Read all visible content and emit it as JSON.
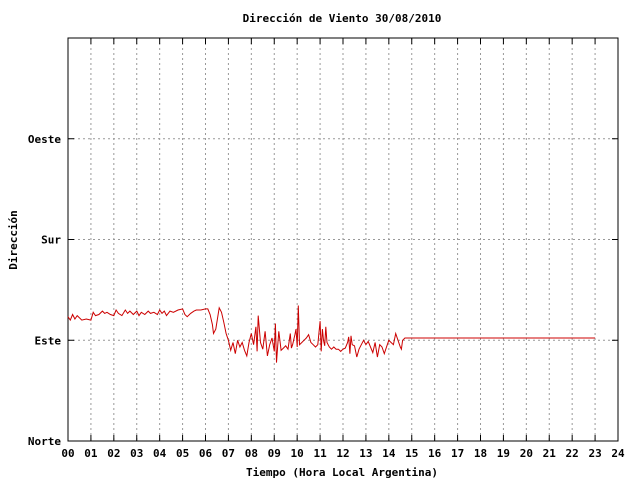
{
  "chart_data": {
    "type": "line",
    "title": "Dirección de Viento 30/08/2010",
    "xlabel": "Tiempo (Hora Local Argentina)",
    "ylabel": "Dirección",
    "x_ticks": [
      "00",
      "01",
      "02",
      "03",
      "04",
      "05",
      "06",
      "07",
      "08",
      "09",
      "10",
      "11",
      "12",
      "13",
      "14",
      "15",
      "16",
      "17",
      "18",
      "19",
      "20",
      "21",
      "22",
      "23",
      "24"
    ],
    "xlim": [
      0,
      24
    ],
    "y_ticks": [
      {
        "value": 0,
        "label": "Norte"
      },
      {
        "value": 90,
        "label": "Este"
      },
      {
        "value": 180,
        "label": "Sur"
      },
      {
        "value": 270,
        "label": "Oeste"
      }
    ],
    "ylim": [
      0,
      360
    ],
    "grid": true,
    "line_color": "#cc0000",
    "series": [
      {
        "points": [
          [
            0.0,
            111
          ],
          [
            0.1,
            108
          ],
          [
            0.2,
            113
          ],
          [
            0.3,
            109
          ],
          [
            0.4,
            112
          ],
          [
            0.5,
            110
          ],
          [
            0.6,
            108
          ],
          [
            0.8,
            109
          ],
          [
            1.0,
            108
          ],
          [
            1.1,
            115
          ],
          [
            1.2,
            112
          ],
          [
            1.35,
            113
          ],
          [
            1.5,
            116
          ],
          [
            1.6,
            114
          ],
          [
            1.7,
            115
          ],
          [
            1.85,
            113
          ],
          [
            2.0,
            112
          ],
          [
            2.1,
            117
          ],
          [
            2.2,
            114
          ],
          [
            2.35,
            112
          ],
          [
            2.5,
            117
          ],
          [
            2.6,
            114
          ],
          [
            2.7,
            116
          ],
          [
            2.85,
            113
          ],
          [
            3.0,
            116
          ],
          [
            3.1,
            112
          ],
          [
            3.2,
            115
          ],
          [
            3.35,
            113
          ],
          [
            3.5,
            116
          ],
          [
            3.6,
            114
          ],
          [
            3.75,
            115
          ],
          [
            3.9,
            113
          ],
          [
            4.0,
            117
          ],
          [
            4.1,
            114
          ],
          [
            4.2,
            116
          ],
          [
            4.3,
            112
          ],
          [
            4.45,
            116
          ],
          [
            4.6,
            115
          ],
          [
            4.8,
            117
          ],
          [
            5.0,
            118
          ],
          [
            5.1,
            113
          ],
          [
            5.2,
            111
          ],
          [
            5.35,
            114
          ],
          [
            5.5,
            116
          ],
          [
            5.6,
            117
          ],
          [
            5.8,
            117
          ],
          [
            6.0,
            118
          ],
          [
            6.1,
            118
          ],
          [
            6.2,
            113
          ],
          [
            6.3,
            104
          ],
          [
            6.35,
            96
          ],
          [
            6.45,
            100
          ],
          [
            6.6,
            119
          ],
          [
            6.7,
            115
          ],
          [
            6.8,
            106
          ],
          [
            6.9,
            96
          ],
          [
            7.0,
            90
          ],
          [
            7.1,
            81
          ],
          [
            7.2,
            88
          ],
          [
            7.3,
            78
          ],
          [
            7.4,
            90
          ],
          [
            7.5,
            84
          ],
          [
            7.6,
            88
          ],
          [
            7.7,
            81
          ],
          [
            7.8,
            76
          ],
          [
            7.9,
            88
          ],
          [
            8.0,
            96
          ],
          [
            8.1,
            86
          ],
          [
            8.2,
            102
          ],
          [
            8.25,
            80
          ],
          [
            8.3,
            112
          ],
          [
            8.4,
            88
          ],
          [
            8.5,
            82
          ],
          [
            8.6,
            98
          ],
          [
            8.7,
            76
          ],
          [
            8.8,
            86
          ],
          [
            8.9,
            92
          ],
          [
            9.0,
            80
          ],
          [
            9.05,
            105
          ],
          [
            9.1,
            70
          ],
          [
            9.15,
            85
          ],
          [
            9.2,
            98
          ],
          [
            9.3,
            81
          ],
          [
            9.4,
            83
          ],
          [
            9.5,
            85
          ],
          [
            9.6,
            82
          ],
          [
            9.7,
            96
          ],
          [
            9.75,
            83
          ],
          [
            9.8,
            86
          ],
          [
            9.9,
            95
          ],
          [
            9.95,
            100
          ],
          [
            10.0,
            84
          ],
          [
            10.05,
            121
          ],
          [
            10.1,
            86
          ],
          [
            10.2,
            88
          ],
          [
            10.3,
            90
          ],
          [
            10.4,
            92
          ],
          [
            10.5,
            95
          ],
          [
            10.6,
            88
          ],
          [
            10.7,
            86
          ],
          [
            10.8,
            84
          ],
          [
            10.9,
            86
          ],
          [
            11.0,
            107
          ],
          [
            11.05,
            80
          ],
          [
            11.1,
            100
          ],
          [
            11.15,
            90
          ],
          [
            11.2,
            85
          ],
          [
            11.25,
            102
          ],
          [
            11.3,
            88
          ],
          [
            11.4,
            84
          ],
          [
            11.5,
            82
          ],
          [
            11.6,
            84
          ],
          [
            11.7,
            82
          ],
          [
            11.8,
            82
          ],
          [
            11.9,
            80
          ],
          [
            12.0,
            82
          ],
          [
            12.1,
            83
          ],
          [
            12.2,
            88
          ],
          [
            12.25,
            93
          ],
          [
            12.3,
            78
          ],
          [
            12.35,
            94
          ],
          [
            12.4,
            86
          ],
          [
            12.5,
            85
          ],
          [
            12.6,
            75
          ],
          [
            12.7,
            82
          ],
          [
            12.8,
            86
          ],
          [
            12.9,
            90
          ],
          [
            13.0,
            86
          ],
          [
            13.1,
            89
          ],
          [
            13.2,
            84
          ],
          [
            13.3,
            79
          ],
          [
            13.4,
            88
          ],
          [
            13.5,
            75
          ],
          [
            13.6,
            86
          ],
          [
            13.7,
            84
          ],
          [
            13.8,
            78
          ],
          [
            13.9,
            84
          ],
          [
            14.0,
            90
          ],
          [
            14.1,
            88
          ],
          [
            14.2,
            86
          ],
          [
            14.3,
            96
          ],
          [
            14.4,
            90
          ],
          [
            14.5,
            84
          ],
          [
            14.55,
            82
          ],
          [
            14.6,
            90
          ],
          [
            14.7,
            92
          ],
          [
            15.0,
            92
          ],
          [
            23.0,
            92
          ]
        ]
      }
    ]
  }
}
